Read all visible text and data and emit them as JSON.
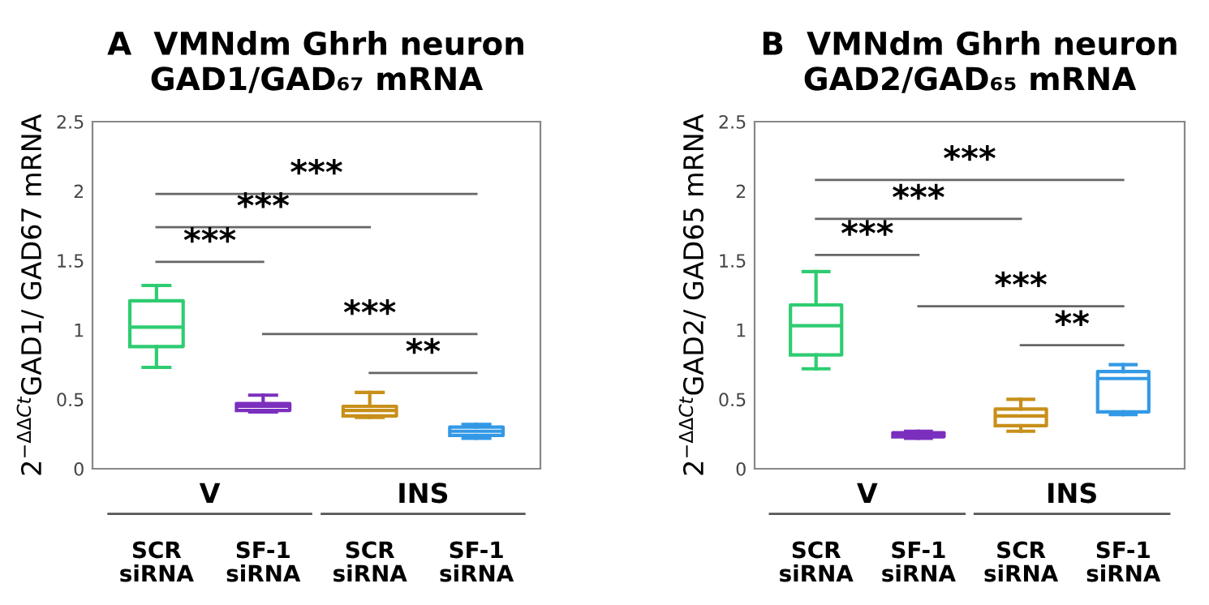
{
  "chart_data": [
    {
      "type": "box",
      "title": "A  VMNdm Ghrh neuron\nGAD1/GAD₆₇ mRNA",
      "ylabel": "2$^{−ΔΔCt}$GAD1/ GAD67 mRNA",
      "categories": [
        "SCR\nsiRNA",
        "SF-1\nsiRNA",
        "SCR\nsiRNA",
        "SF-1\nsiRNA"
      ],
      "colors": [
        "#2ecc71",
        "#7b2fbe",
        "#c8901a",
        "#3399e6"
      ],
      "boxes": [
        {
          "low": 0.73,
          "q1": 0.88,
          "median": 1.02,
          "q3": 1.21,
          "high": 1.32
        },
        {
          "low": 0.41,
          "q1": 0.42,
          "median": 0.45,
          "q3": 0.47,
          "high": 0.53
        },
        {
          "low": 0.37,
          "q1": 0.38,
          "median": 0.42,
          "q3": 0.45,
          "high": 0.55
        },
        {
          "low": 0.22,
          "q1": 0.24,
          "median": 0.27,
          "q3": 0.3,
          "high": 0.32
        }
      ],
      "ylim": [
        0,
        2.5
      ],
      "yticks": [
        0,
        0.5,
        1,
        1.5,
        2,
        2.5
      ],
      "grid": false,
      "legend": false,
      "annotations": [
        "***",
        "***",
        "***",
        "***",
        "**",
        "V",
        "INS"
      ]
    },
    {
      "type": "box",
      "title": "B  VMNdm Ghrh neuron\nGAD2/GAD₆₅ mRNA",
      "ylabel": "2$^{−ΔΔCt}$GAD2/ GAD65 mRNA",
      "categories": [
        "SCR\nsiRNA",
        "SF-1\nsiRNA",
        "SCR\nsiRNA",
        "SF-1\nsiRNA"
      ],
      "colors": [
        "#2ecc71",
        "#7b2fbe",
        "#c8901a",
        "#3399e6"
      ],
      "boxes": [
        {
          "low": 0.72,
          "q1": 0.82,
          "median": 1.03,
          "q3": 1.18,
          "high": 1.42
        },
        {
          "low": 0.22,
          "q1": 0.23,
          "median": 0.24,
          "q3": 0.26,
          "high": 0.27
        },
        {
          "low": 0.27,
          "q1": 0.31,
          "median": 0.38,
          "q3": 0.43,
          "high": 0.5
        },
        {
          "low": 0.39,
          "q1": 0.41,
          "median": 0.65,
          "q3": 0.7,
          "high": 0.75
        }
      ],
      "ylim": [
        0,
        2.5
      ],
      "yticks": [
        0,
        0.5,
        1,
        1.5,
        2,
        2.5
      ],
      "grid": false,
      "legend": false,
      "annotations": [
        "***",
        "***",
        "***",
        "***",
        "**",
        "V",
        "INS"
      ]
    }
  ]
}
